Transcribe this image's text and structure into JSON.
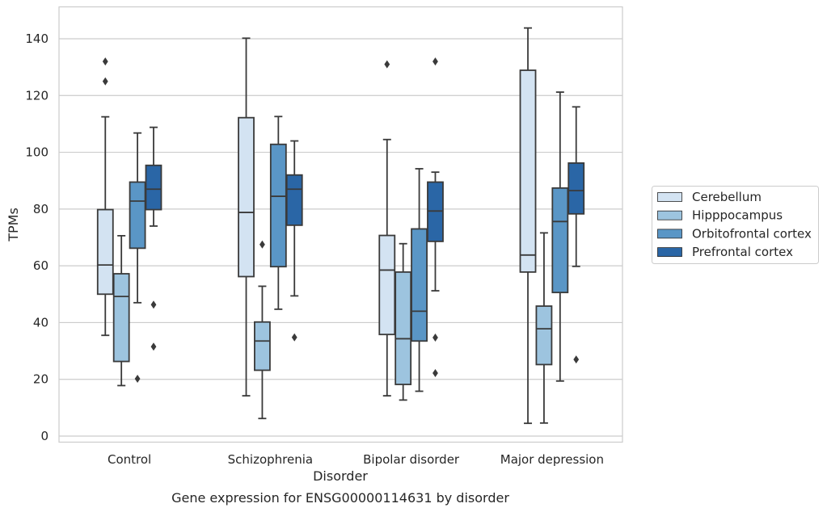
{
  "chart_data": {
    "type": "boxplot",
    "caption": "Gene expression for ENSG00000114631 by disorder",
    "xlabel": "Disorder",
    "ylabel": "TPMs",
    "ylim": [
      -2,
      151
    ],
    "yticks": [
      0,
      20,
      40,
      60,
      80,
      100,
      120,
      140
    ],
    "grid": true,
    "legend_position": "right",
    "categories": [
      "Control",
      "Schizophrenia",
      "Bipolar disorder",
      "Major depression"
    ],
    "series": [
      {
        "name": "Cerebellum",
        "color": "#d3e3f2",
        "boxes": [
          {
            "whislo": 35.5,
            "q1": 50,
            "med": 60.3,
            "q3": 79.8,
            "whishi": 112.5,
            "fliers": [
              125,
              132
            ]
          },
          {
            "whislo": 14.2,
            "q1": 56.2,
            "med": 78.8,
            "q3": 112.2,
            "whishi": 140.2,
            "fliers": []
          },
          {
            "whislo": 14.2,
            "q1": 35.8,
            "med": 58.5,
            "q3": 70.7,
            "whishi": 104.5,
            "fliers": [
              131
            ]
          },
          {
            "whislo": 4.5,
            "q1": 57.8,
            "med": 63.8,
            "q3": 128.9,
            "whishi": 143.8,
            "fliers": []
          }
        ]
      },
      {
        "name": "Hipppocampus",
        "color": "#9dc4df",
        "boxes": [
          {
            "whislo": 17.8,
            "q1": 26.3,
            "med": 49.2,
            "q3": 57.2,
            "whishi": 70.6,
            "fliers": []
          },
          {
            "whislo": 6.2,
            "q1": 23.2,
            "med": 33.5,
            "q3": 40.2,
            "whishi": 52.8,
            "fliers": [
              67.5
            ]
          },
          {
            "whislo": 12.7,
            "q1": 18.2,
            "med": 34.3,
            "q3": 57.8,
            "whishi": 67.8,
            "fliers": []
          },
          {
            "whislo": 4.6,
            "q1": 25.2,
            "med": 37.8,
            "q3": 45.8,
            "whishi": 71.6,
            "fliers": []
          }
        ]
      },
      {
        "name": "Orbitofrontal cortex",
        "color": "#5a96c6",
        "boxes": [
          {
            "whislo": 47.0,
            "q1": 66.2,
            "med": 82.8,
            "q3": 89.5,
            "whishi": 106.8,
            "fliers": [
              20.2
            ]
          },
          {
            "whislo": 44.7,
            "q1": 59.7,
            "med": 84.5,
            "q3": 102.8,
            "whishi": 112.6,
            "fliers": []
          },
          {
            "whislo": 15.8,
            "q1": 33.5,
            "med": 44.0,
            "q3": 73.0,
            "whishi": 94.2,
            "fliers": []
          },
          {
            "whislo": 19.4,
            "q1": 50.6,
            "med": 75.6,
            "q3": 87.4,
            "whishi": 121.2,
            "fliers": []
          }
        ]
      },
      {
        "name": "Prefrontal cortex",
        "color": "#2a66a6",
        "boxes": [
          {
            "whislo": 74.0,
            "q1": 79.8,
            "med": 87.0,
            "q3": 95.4,
            "whishi": 108.8,
            "fliers": [
              31.5,
              46.3
            ]
          },
          {
            "whislo": 49.4,
            "q1": 74.3,
            "med": 87.0,
            "q3": 92.0,
            "whishi": 104.0,
            "fliers": [
              34.8
            ]
          },
          {
            "whislo": 51.2,
            "q1": 68.6,
            "med": 79.3,
            "q3": 89.5,
            "whishi": 93.0,
            "fliers": [
              22.2,
              34.7,
              132
            ]
          },
          {
            "whislo": 59.8,
            "q1": 78.3,
            "med": 86.5,
            "q3": 96.2,
            "whishi": 116.0,
            "fliers": [
              27.0
            ]
          }
        ]
      }
    ]
  }
}
